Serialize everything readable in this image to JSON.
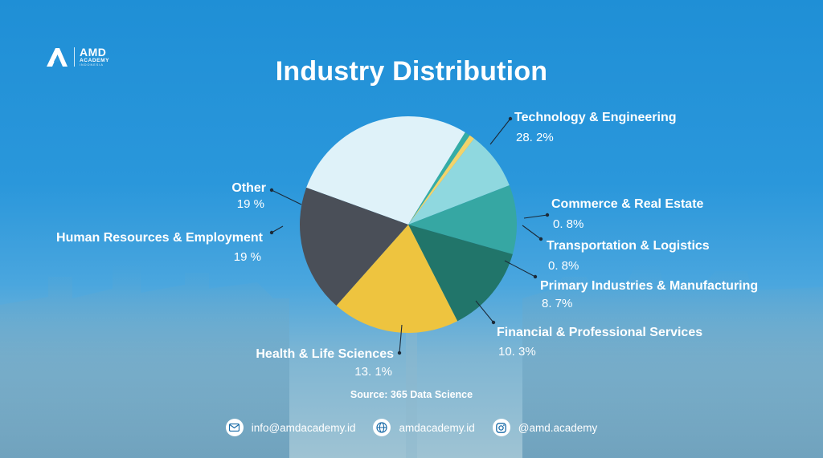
{
  "brand": {
    "name": "AMD",
    "sub": "ACADEMY",
    "region": "INDONESIA"
  },
  "title": "Industry Distribution",
  "source": "Source: 365 Data Science",
  "contacts": {
    "email": "info@amdacademy.id",
    "website": "amdacademy.id",
    "instagram": "@amd.academy"
  },
  "colors": {
    "background": "#2a97db",
    "accent_dark": "#1a6ca8"
  },
  "chart_data": {
    "type": "pie",
    "title": "Industry Distribution",
    "source": "Source: 365 Data Science",
    "slices": [
      {
        "label": "Technology & Engineering",
        "value": 28.2,
        "display": "28. 2%",
        "color": "#dff2f9"
      },
      {
        "label": "Commerce & Real Estate",
        "value": 0.8,
        "display": "0. 8%",
        "color": "#35ada6"
      },
      {
        "label": "Transportation & Logistics",
        "value": 0.8,
        "display": "0. 8%",
        "color": "#f2d36b"
      },
      {
        "label": "Primary Industries & Manufacturing",
        "value": 8.7,
        "display": "8. 7%",
        "color": "#8fd8df"
      },
      {
        "label": "Financial & Professional Services",
        "value": 10.3,
        "display": "10. 3%",
        "color": "#36a7a3"
      },
      {
        "label": "Health & Life Sciences",
        "value": 13.1,
        "display": "13. 1%",
        "color": "#21756a"
      },
      {
        "label": "Human Resources & Employment",
        "value": 19,
        "display": "19 %",
        "color": "#eec43f"
      },
      {
        "label": "Other",
        "value": 19,
        "display": "19 %",
        "color": "#4a4f58"
      }
    ],
    "legend": "none"
  }
}
